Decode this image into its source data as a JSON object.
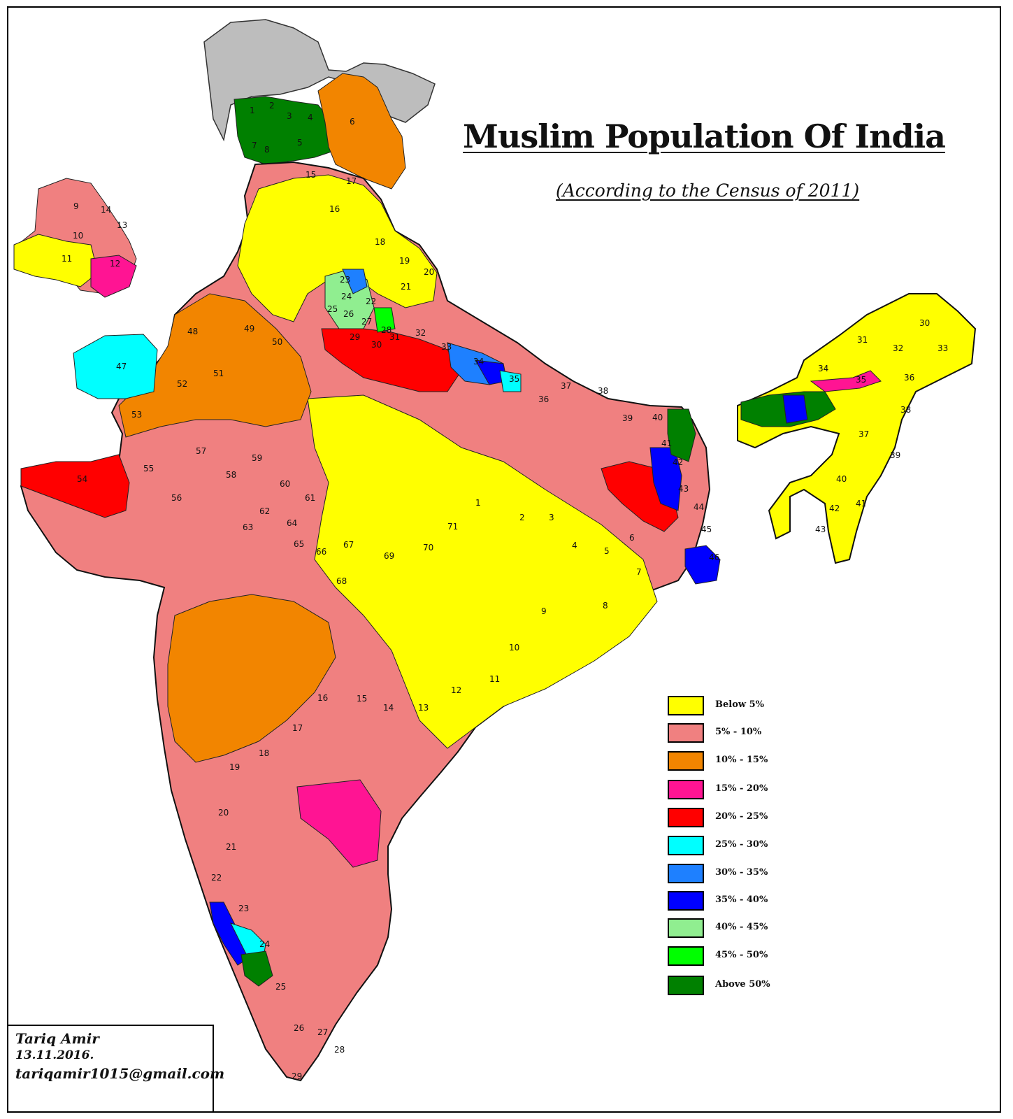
{
  "title": "Muslim Population Of India",
  "subtitle": "(According to the Census of 2011)",
  "credit": {
    "author": "Tariq Amir",
    "date": "13.11.2016.",
    "email": "tariqamir1015@gmail.com"
  },
  "legend": [
    {
      "label": "Below 5%",
      "color": "#ffff00"
    },
    {
      "label": "5%  -  10%",
      "color": "#f08080"
    },
    {
      "label": "10%  -  15%",
      "color": "#f28500"
    },
    {
      "label": "15%  -  20%",
      "color": "#ff1493"
    },
    {
      "label": "20%  -  25%",
      "color": "#ff0000"
    },
    {
      "label": "25%  -  30%",
      "color": "#00ffff"
    },
    {
      "label": "30%  -  35%",
      "color": "#1e80ff"
    },
    {
      "label": "35%  -  40%",
      "color": "#0000ff"
    },
    {
      "label": "40%  -  45%",
      "color": "#90ee90"
    },
    {
      "label": "45%  -  50%",
      "color": "#00ff00"
    },
    {
      "label": "Above 50%",
      "color": "#008000"
    }
  ],
  "map": {
    "disputed_color": "#bdbdbd",
    "district_labels": [
      "1",
      "2",
      "3",
      "4",
      "5",
      "6",
      "7",
      "8",
      "9",
      "10",
      "11",
      "12",
      "13",
      "14",
      "15",
      "16",
      "17",
      "18",
      "19",
      "20",
      "21",
      "22",
      "23",
      "24",
      "25",
      "26",
      "27",
      "28",
      "29",
      "30",
      "31",
      "32",
      "33",
      "34",
      "35",
      "36",
      "37",
      "38",
      "39",
      "40",
      "41",
      "42",
      "43",
      "44",
      "45",
      "46",
      "47",
      "48",
      "49",
      "50",
      "51",
      "52",
      "53",
      "54",
      "55",
      "56",
      "57",
      "58",
      "59",
      "60",
      "61",
      "62",
      "63",
      "64",
      "65",
      "66",
      "67",
      "68",
      "69",
      "70",
      "71"
    ]
  }
}
